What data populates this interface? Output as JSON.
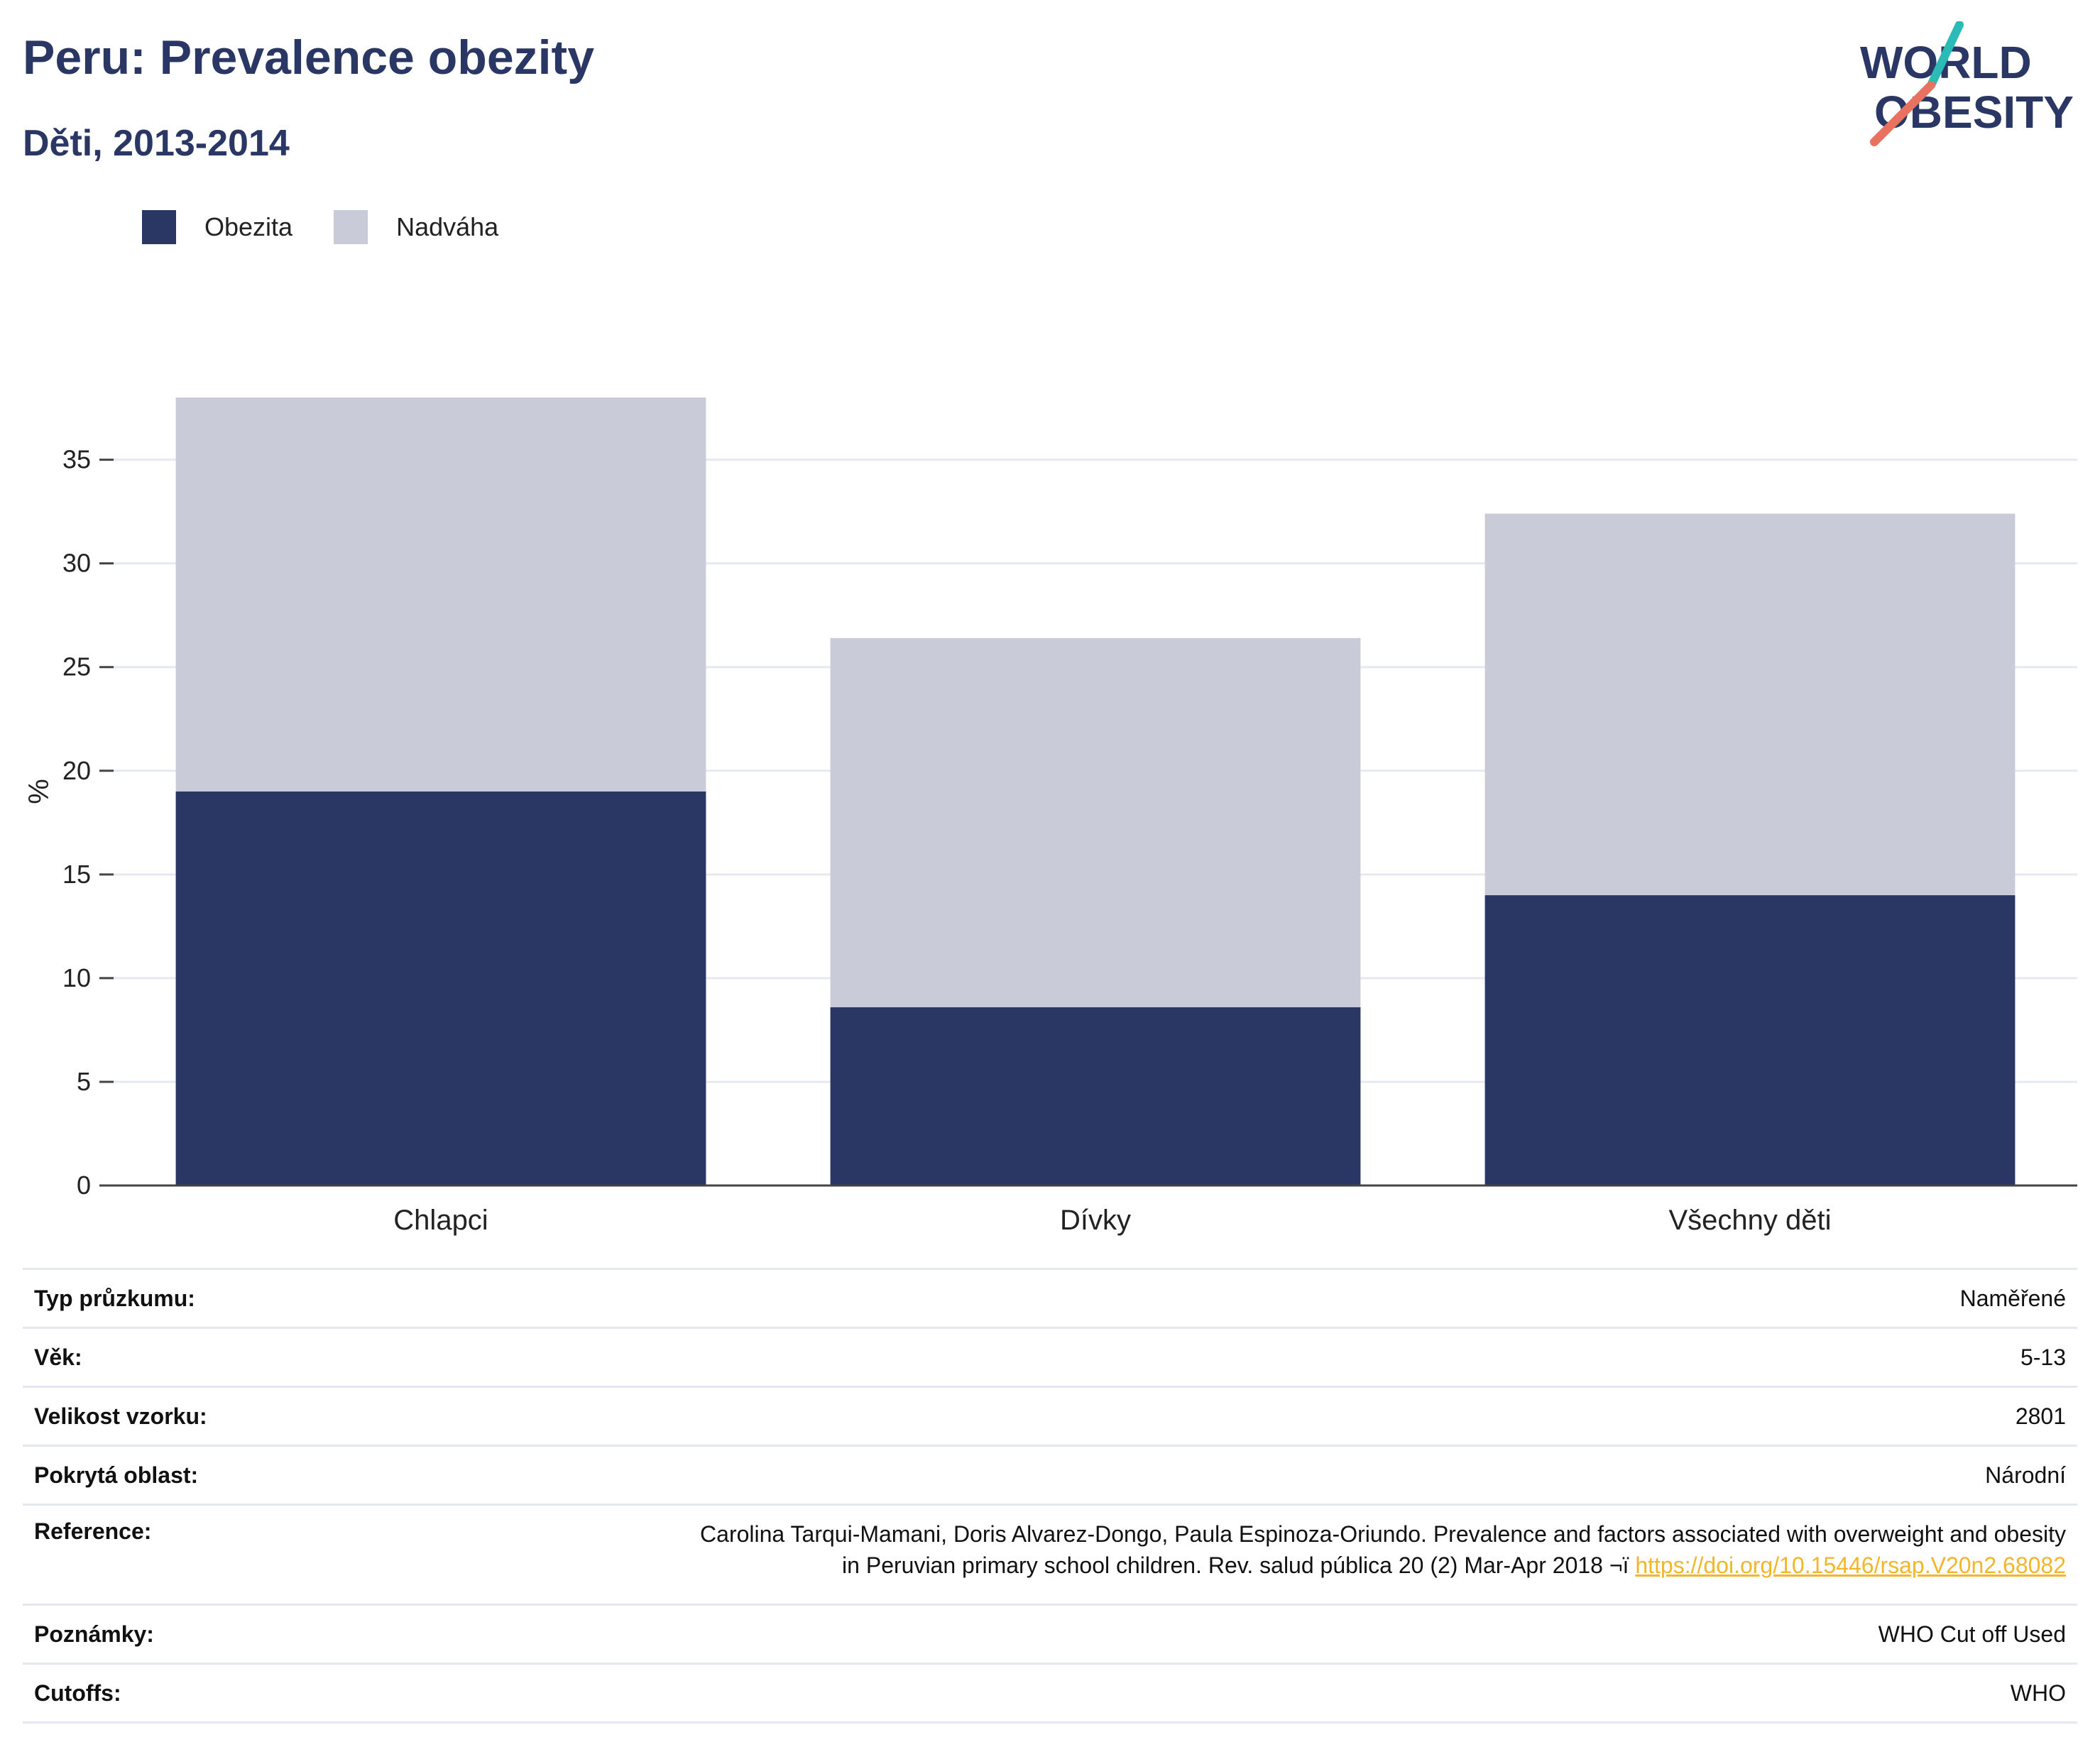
{
  "header": {
    "title": "Peru: Prevalence obezity",
    "subtitle": "Děti, 2013-2014"
  },
  "logo": {
    "line1": "WORLD",
    "line2": "OBESITY",
    "accent_top": "#2bbbb7",
    "accent_bottom": "#e8725f"
  },
  "colors": {
    "obezita": "#2a3764",
    "nadvaha": "#c9ccd8",
    "grid": "#e6e9f1",
    "axis": "#444444"
  },
  "chart_data": {
    "type": "bar",
    "stacked": true,
    "ylabel": "%",
    "ylim": [
      0,
      38
    ],
    "yticks": [
      0,
      5,
      10,
      15,
      20,
      25,
      30,
      35
    ],
    "grid": true,
    "legend": "top-left",
    "categories": [
      "Chlapci",
      "Dívky",
      "Všechny děti"
    ],
    "series": [
      {
        "name": "Obezita",
        "values": [
          19.0,
          8.6,
          14.0
        ]
      },
      {
        "name": "Nadváha",
        "values": [
          19.0,
          17.8,
          18.4
        ]
      }
    ]
  },
  "meta": {
    "rows": [
      {
        "label": "Typ průzkumu:",
        "value": "Naměřené"
      },
      {
        "label": "Věk:",
        "value": "5-13"
      },
      {
        "label": "Velikost vzorku:",
        "value": "2801"
      },
      {
        "label": "Pokrytá oblast:",
        "value": "Národní"
      }
    ],
    "reference": {
      "label": "Reference:",
      "line1": "Carolina Tarqui-Mamani, Doris Alvarez-Dongo, Paula Espinoza-Oriundo. Prevalence and factors associated with overweight and obesity",
      "line2": "in Peruvian primary school children. Rev. salud pública 20 (2) Mar-Apr 2018 ¬ï",
      "link": "https://doi.org/10.15446/rsap.V20n2.68082"
    },
    "notes": {
      "label": "Poznámky:",
      "value": "WHO Cut off Used"
    },
    "cutoffs": {
      "label": "Cutoffs:",
      "value": "WHO"
    }
  }
}
